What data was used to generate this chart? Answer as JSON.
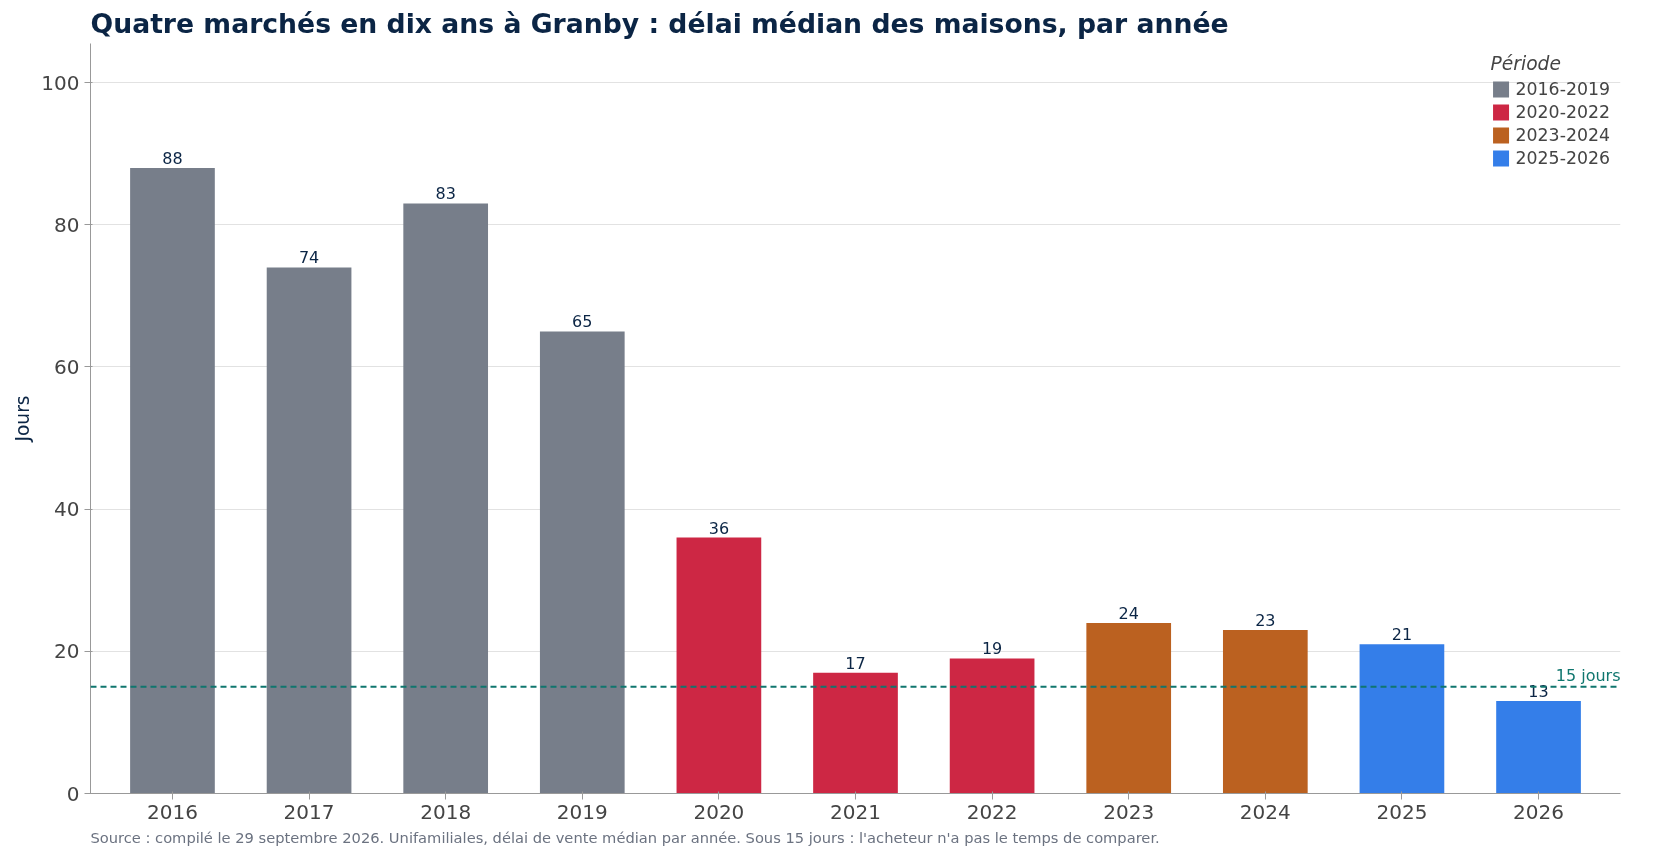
{
  "chart_data": {
    "type": "bar",
    "title": "Quatre marchés en dix ans à Granby : délai médian des maisons, par année",
    "ylabel": "Jours",
    "legend_title": "Période",
    "categories": [
      "2016",
      "2017",
      "2018",
      "2019",
      "2020",
      "2021",
      "2022",
      "2023",
      "2024",
      "2025",
      "2026"
    ],
    "series": [
      {
        "name": "2016-2019",
        "color": "#777e8a",
        "values": [
          88,
          74,
          83,
          65,
          null,
          null,
          null,
          null,
          null,
          null,
          null
        ]
      },
      {
        "name": "2020-2022",
        "color": "#cd2744",
        "values": [
          null,
          null,
          null,
          null,
          36,
          17,
          19,
          null,
          null,
          null,
          null
        ]
      },
      {
        "name": "2023-2024",
        "color": "#bb6120",
        "values": [
          null,
          null,
          null,
          null,
          null,
          null,
          null,
          24,
          23,
          null,
          null
        ]
      },
      {
        "name": "2025-2026",
        "color": "#347ee9",
        "values": [
          null,
          null,
          null,
          null,
          null,
          null,
          null,
          null,
          null,
          21,
          13
        ]
      }
    ],
    "ylim": [
      0,
      105.5
    ],
    "yticks": [
      0,
      20,
      40,
      60,
      80,
      100
    ],
    "grid": "y",
    "legend": "top right",
    "data_labels": true,
    "ref_lines": [
      {
        "axis": "y",
        "value": 15,
        "label": "15 jours",
        "color": "#0f766e",
        "line_style": "dashed"
      }
    ],
    "annotations": [
      "Source : compilé le 29 septembre 2026. Unifamiliales, délai de vente médian par année. Sous 15 jours : l'acheteur n'a pas le temps de comparer."
    ]
  }
}
